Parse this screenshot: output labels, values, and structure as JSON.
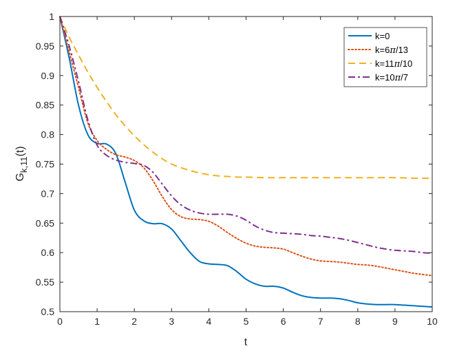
{
  "chart_data": {
    "type": "line",
    "title": "",
    "xlabel": "t",
    "ylabel_main": "G",
    "ylabel_sub": "k,11",
    "ylabel_suffix": "(t)",
    "xlim": [
      0,
      10
    ],
    "ylim": [
      0.5,
      1
    ],
    "xticks": [
      0,
      1,
      2,
      3,
      4,
      5,
      6,
      7,
      8,
      9,
      10
    ],
    "yticks": [
      0.5,
      0.55,
      0.6,
      0.65,
      0.7,
      0.75,
      0.8,
      0.85,
      0.9,
      0.95,
      1
    ],
    "ytick_labels": [
      "0.5",
      "0.55",
      "0.6",
      "0.65",
      "0.7",
      "0.75",
      "0.8",
      "0.85",
      "0.9",
      "0.95",
      "1"
    ],
    "grid": false,
    "legend_position": "top-right",
    "series": [
      {
        "name": "k=0",
        "label_prefix": "k=",
        "label_value": "0",
        "label_pi": "",
        "label_tail": "",
        "color": "#0072BD",
        "style": "solid",
        "x": [
          0,
          0.25,
          0.5,
          0.75,
          1.0,
          1.25,
          1.5,
          1.75,
          2.0,
          2.25,
          2.5,
          2.75,
          3.0,
          3.25,
          3.5,
          3.75,
          4.0,
          4.25,
          4.5,
          4.75,
          5.0,
          5.25,
          5.5,
          5.75,
          6.0,
          6.25,
          6.5,
          6.75,
          7.0,
          7.25,
          7.5,
          7.75,
          8.0,
          8.25,
          8.5,
          8.75,
          9.0,
          9.25,
          9.5,
          9.75,
          10.0
        ],
        "y": [
          1.0,
          0.93,
          0.85,
          0.8,
          0.785,
          0.784,
          0.768,
          0.72,
          0.672,
          0.654,
          0.649,
          0.649,
          0.64,
          0.62,
          0.6,
          0.585,
          0.581,
          0.58,
          0.578,
          0.568,
          0.555,
          0.547,
          0.543,
          0.543,
          0.54,
          0.533,
          0.527,
          0.524,
          0.523,
          0.523,
          0.522,
          0.519,
          0.515,
          0.513,
          0.512,
          0.512,
          0.512,
          0.511,
          0.51,
          0.509,
          0.508
        ]
      },
      {
        "name": "k=6π/13",
        "label_prefix": "k=6",
        "label_value": "",
        "label_pi": "π",
        "label_tail": "/13",
        "color": "#D95319",
        "style": "dotted",
        "x": [
          0,
          0.25,
          0.5,
          0.75,
          1.0,
          1.25,
          1.5,
          1.75,
          2.0,
          2.25,
          2.5,
          2.75,
          3.0,
          3.25,
          3.5,
          3.75,
          4.0,
          4.25,
          4.5,
          4.75,
          5.0,
          5.25,
          5.5,
          5.75,
          6.0,
          6.25,
          6.5,
          6.75,
          7.0,
          7.25,
          7.5,
          7.75,
          8.0,
          8.25,
          8.5,
          8.75,
          9.0,
          9.25,
          9.5,
          9.75,
          10.0
        ],
        "y": [
          1.0,
          0.94,
          0.88,
          0.82,
          0.79,
          0.775,
          0.766,
          0.762,
          0.756,
          0.744,
          0.722,
          0.695,
          0.673,
          0.661,
          0.657,
          0.656,
          0.653,
          0.645,
          0.634,
          0.624,
          0.616,
          0.611,
          0.609,
          0.608,
          0.606,
          0.6,
          0.594,
          0.589,
          0.586,
          0.585,
          0.584,
          0.582,
          0.58,
          0.579,
          0.577,
          0.574,
          0.571,
          0.568,
          0.565,
          0.563,
          0.561
        ]
      },
      {
        "name": "k=11π/10",
        "label_prefix": "k=11",
        "label_value": "",
        "label_pi": "π",
        "label_tail": "/10",
        "color": "#EDB120",
        "style": "dashed",
        "x": [
          0,
          0.25,
          0.5,
          0.75,
          1.0,
          1.25,
          1.5,
          1.75,
          2.0,
          2.25,
          2.5,
          2.75,
          3.0,
          3.25,
          3.5,
          3.75,
          4.0,
          4.25,
          4.5,
          4.75,
          5.0,
          5.5,
          6.0,
          6.5,
          7.0,
          7.5,
          8.0,
          8.5,
          9.0,
          9.5,
          10.0
        ],
        "y": [
          1.0,
          0.965,
          0.935,
          0.906,
          0.88,
          0.856,
          0.834,
          0.815,
          0.798,
          0.783,
          0.77,
          0.759,
          0.75,
          0.744,
          0.739,
          0.735,
          0.732,
          0.73,
          0.729,
          0.728,
          0.728,
          0.727,
          0.727,
          0.727,
          0.727,
          0.727,
          0.727,
          0.727,
          0.727,
          0.726,
          0.726
        ]
      },
      {
        "name": "k=10π/7",
        "label_prefix": "k=10",
        "label_value": "",
        "label_pi": "π",
        "label_tail": "/7",
        "color": "#7E2F8E",
        "style": "dashdot",
        "x": [
          0,
          0.25,
          0.5,
          0.75,
          1.0,
          1.25,
          1.5,
          1.75,
          2.0,
          2.25,
          2.5,
          2.75,
          3.0,
          3.25,
          3.5,
          3.75,
          4.0,
          4.25,
          4.5,
          4.75,
          5.0,
          5.25,
          5.5,
          5.75,
          6.0,
          6.25,
          6.5,
          6.75,
          7.0,
          7.25,
          7.5,
          7.75,
          8.0,
          8.25,
          8.5,
          8.75,
          9.0,
          9.25,
          9.5,
          9.75,
          10.0
        ],
        "y": [
          1.0,
          0.95,
          0.89,
          0.825,
          0.782,
          0.765,
          0.757,
          0.753,
          0.751,
          0.748,
          0.736,
          0.716,
          0.696,
          0.681,
          0.672,
          0.667,
          0.665,
          0.665,
          0.665,
          0.662,
          0.655,
          0.645,
          0.638,
          0.634,
          0.633,
          0.632,
          0.631,
          0.629,
          0.628,
          0.626,
          0.624,
          0.621,
          0.617,
          0.613,
          0.609,
          0.606,
          0.604,
          0.603,
          0.602,
          0.6,
          0.599
        ]
      }
    ]
  }
}
